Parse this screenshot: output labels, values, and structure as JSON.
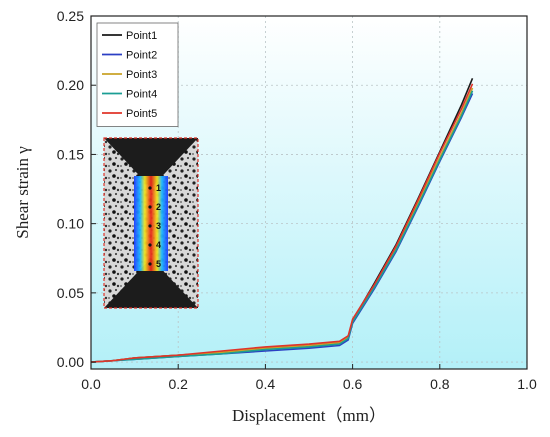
{
  "chart_data": {
    "type": "line",
    "title": "",
    "xlabel": "Displacement（mm）",
    "ylabel": "Shear strain γ",
    "xlim": [
      0.0,
      1.0
    ],
    "ylim": [
      -0.005,
      0.25
    ],
    "xticks": [
      "0.0",
      "0.2",
      "0.4",
      "0.6",
      "0.8",
      "1.0"
    ],
    "yticks": [
      "0.00",
      "0.05",
      "0.10",
      "0.15",
      "0.20",
      "0.25"
    ],
    "grid": true,
    "legend_position": "top-left",
    "background_gradient": [
      "#ffffff",
      "#b3f0f8"
    ],
    "series": [
      {
        "name": "Point1",
        "color": "#1a1a1a",
        "x": [
          0.0,
          0.05,
          0.1,
          0.2,
          0.3,
          0.4,
          0.5,
          0.57,
          0.59,
          0.6,
          0.65,
          0.7,
          0.75,
          0.8,
          0.85,
          0.875
        ],
        "y": [
          0.0,
          0.001,
          0.003,
          0.005,
          0.007,
          0.01,
          0.012,
          0.014,
          0.018,
          0.03,
          0.057,
          0.085,
          0.118,
          0.152,
          0.186,
          0.205
        ]
      },
      {
        "name": "Point2",
        "color": "#2b3fc4",
        "x": [
          0.0,
          0.05,
          0.1,
          0.2,
          0.3,
          0.4,
          0.5,
          0.57,
          0.59,
          0.6,
          0.65,
          0.7,
          0.75,
          0.8,
          0.85,
          0.875
        ],
        "y": [
          0.0,
          0.001,
          0.002,
          0.004,
          0.006,
          0.008,
          0.01,
          0.012,
          0.016,
          0.028,
          0.053,
          0.08,
          0.112,
          0.145,
          0.177,
          0.194
        ]
      },
      {
        "name": "Point3",
        "color": "#c9a227",
        "x": [
          0.0,
          0.05,
          0.1,
          0.2,
          0.3,
          0.4,
          0.5,
          0.57,
          0.59,
          0.6,
          0.65,
          0.7,
          0.75,
          0.8,
          0.85,
          0.875
        ],
        "y": [
          0.0,
          0.001,
          0.003,
          0.005,
          0.007,
          0.01,
          0.012,
          0.014,
          0.018,
          0.03,
          0.055,
          0.083,
          0.115,
          0.148,
          0.18,
          0.198
        ]
      },
      {
        "name": "Point4",
        "color": "#1a9e94",
        "x": [
          0.0,
          0.05,
          0.1,
          0.2,
          0.3,
          0.4,
          0.5,
          0.57,
          0.59,
          0.6,
          0.65,
          0.7,
          0.75,
          0.8,
          0.85,
          0.875
        ],
        "y": [
          0.0,
          0.001,
          0.002,
          0.004,
          0.006,
          0.009,
          0.011,
          0.013,
          0.017,
          0.029,
          0.054,
          0.081,
          0.113,
          0.146,
          0.178,
          0.196
        ]
      },
      {
        "name": "Point5",
        "color": "#e0342a",
        "x": [
          0.0,
          0.05,
          0.1,
          0.2,
          0.3,
          0.4,
          0.5,
          0.57,
          0.59,
          0.6,
          0.65,
          0.7,
          0.75,
          0.8,
          0.85,
          0.875
        ],
        "y": [
          0.0,
          0.001,
          0.003,
          0.005,
          0.008,
          0.011,
          0.013,
          0.015,
          0.019,
          0.031,
          0.056,
          0.084,
          0.117,
          0.151,
          0.183,
          0.201
        ]
      }
    ],
    "inset": {
      "point_labels": [
        "1",
        "2",
        "3",
        "4",
        "5"
      ]
    }
  }
}
